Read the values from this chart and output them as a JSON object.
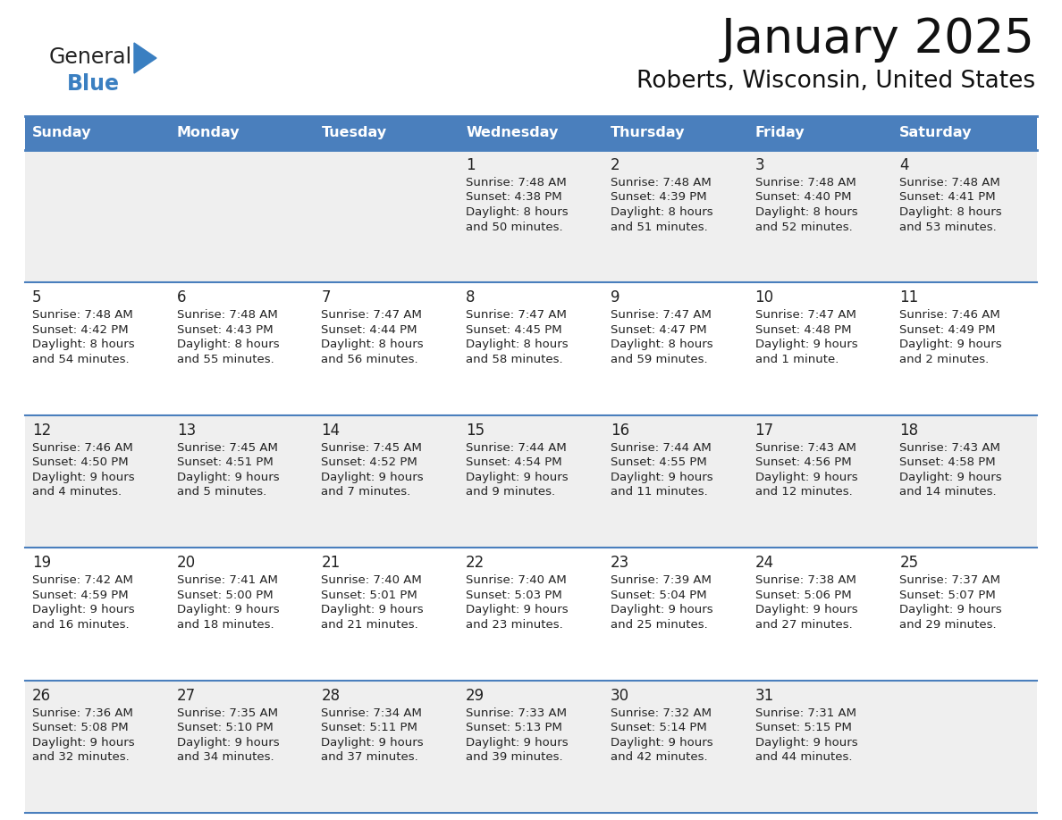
{
  "title": "January 2025",
  "subtitle": "Roberts, Wisconsin, United States",
  "header_bg": "#4a7fbd",
  "header_text_color": "#ffffff",
  "row_bg_odd": "#efefef",
  "row_bg_even": "#ffffff",
  "border_color": "#4a7fbd",
  "day_names": [
    "Sunday",
    "Monday",
    "Tuesday",
    "Wednesday",
    "Thursday",
    "Friday",
    "Saturday"
  ],
  "days": [
    {
      "day": 1,
      "col": 3,
      "row": 0,
      "sunrise": "7:48 AM",
      "sunset": "4:38 PM",
      "daylight": "8 hours and 50 minutes"
    },
    {
      "day": 2,
      "col": 4,
      "row": 0,
      "sunrise": "7:48 AM",
      "sunset": "4:39 PM",
      "daylight": "8 hours and 51 minutes"
    },
    {
      "day": 3,
      "col": 5,
      "row": 0,
      "sunrise": "7:48 AM",
      "sunset": "4:40 PM",
      "daylight": "8 hours and 52 minutes"
    },
    {
      "day": 4,
      "col": 6,
      "row": 0,
      "sunrise": "7:48 AM",
      "sunset": "4:41 PM",
      "daylight": "8 hours and 53 minutes"
    },
    {
      "day": 5,
      "col": 0,
      "row": 1,
      "sunrise": "7:48 AM",
      "sunset": "4:42 PM",
      "daylight": "8 hours and 54 minutes"
    },
    {
      "day": 6,
      "col": 1,
      "row": 1,
      "sunrise": "7:48 AM",
      "sunset": "4:43 PM",
      "daylight": "8 hours and 55 minutes"
    },
    {
      "day": 7,
      "col": 2,
      "row": 1,
      "sunrise": "7:47 AM",
      "sunset": "4:44 PM",
      "daylight": "8 hours and 56 minutes"
    },
    {
      "day": 8,
      "col": 3,
      "row": 1,
      "sunrise": "7:47 AM",
      "sunset": "4:45 PM",
      "daylight": "8 hours and 58 minutes"
    },
    {
      "day": 9,
      "col": 4,
      "row": 1,
      "sunrise": "7:47 AM",
      "sunset": "4:47 PM",
      "daylight": "8 hours and 59 minutes"
    },
    {
      "day": 10,
      "col": 5,
      "row": 1,
      "sunrise": "7:47 AM",
      "sunset": "4:48 PM",
      "daylight": "9 hours and 1 minute"
    },
    {
      "day": 11,
      "col": 6,
      "row": 1,
      "sunrise": "7:46 AM",
      "sunset": "4:49 PM",
      "daylight": "9 hours and 2 minutes"
    },
    {
      "day": 12,
      "col": 0,
      "row": 2,
      "sunrise": "7:46 AM",
      "sunset": "4:50 PM",
      "daylight": "9 hours and 4 minutes"
    },
    {
      "day": 13,
      "col": 1,
      "row": 2,
      "sunrise": "7:45 AM",
      "sunset": "4:51 PM",
      "daylight": "9 hours and 5 minutes"
    },
    {
      "day": 14,
      "col": 2,
      "row": 2,
      "sunrise": "7:45 AM",
      "sunset": "4:52 PM",
      "daylight": "9 hours and 7 minutes"
    },
    {
      "day": 15,
      "col": 3,
      "row": 2,
      "sunrise": "7:44 AM",
      "sunset": "4:54 PM",
      "daylight": "9 hours and 9 minutes"
    },
    {
      "day": 16,
      "col": 4,
      "row": 2,
      "sunrise": "7:44 AM",
      "sunset": "4:55 PM",
      "daylight": "9 hours and 11 minutes"
    },
    {
      "day": 17,
      "col": 5,
      "row": 2,
      "sunrise": "7:43 AM",
      "sunset": "4:56 PM",
      "daylight": "9 hours and 12 minutes"
    },
    {
      "day": 18,
      "col": 6,
      "row": 2,
      "sunrise": "7:43 AM",
      "sunset": "4:58 PM",
      "daylight": "9 hours and 14 minutes"
    },
    {
      "day": 19,
      "col": 0,
      "row": 3,
      "sunrise": "7:42 AM",
      "sunset": "4:59 PM",
      "daylight": "9 hours and 16 minutes"
    },
    {
      "day": 20,
      "col": 1,
      "row": 3,
      "sunrise": "7:41 AM",
      "sunset": "5:00 PM",
      "daylight": "9 hours and 18 minutes"
    },
    {
      "day": 21,
      "col": 2,
      "row": 3,
      "sunrise": "7:40 AM",
      "sunset": "5:01 PM",
      "daylight": "9 hours and 21 minutes"
    },
    {
      "day": 22,
      "col": 3,
      "row": 3,
      "sunrise": "7:40 AM",
      "sunset": "5:03 PM",
      "daylight": "9 hours and 23 minutes"
    },
    {
      "day": 23,
      "col": 4,
      "row": 3,
      "sunrise": "7:39 AM",
      "sunset": "5:04 PM",
      "daylight": "9 hours and 25 minutes"
    },
    {
      "day": 24,
      "col": 5,
      "row": 3,
      "sunrise": "7:38 AM",
      "sunset": "5:06 PM",
      "daylight": "9 hours and 27 minutes"
    },
    {
      "day": 25,
      "col": 6,
      "row": 3,
      "sunrise": "7:37 AM",
      "sunset": "5:07 PM",
      "daylight": "9 hours and 29 minutes"
    },
    {
      "day": 26,
      "col": 0,
      "row": 4,
      "sunrise": "7:36 AM",
      "sunset": "5:08 PM",
      "daylight": "9 hours and 32 minutes"
    },
    {
      "day": 27,
      "col": 1,
      "row": 4,
      "sunrise": "7:35 AM",
      "sunset": "5:10 PM",
      "daylight": "9 hours and 34 minutes"
    },
    {
      "day": 28,
      "col": 2,
      "row": 4,
      "sunrise": "7:34 AM",
      "sunset": "5:11 PM",
      "daylight": "9 hours and 37 minutes"
    },
    {
      "day": 29,
      "col": 3,
      "row": 4,
      "sunrise": "7:33 AM",
      "sunset": "5:13 PM",
      "daylight": "9 hours and 39 minutes"
    },
    {
      "day": 30,
      "col": 4,
      "row": 4,
      "sunrise": "7:32 AM",
      "sunset": "5:14 PM",
      "daylight": "9 hours and 42 minutes"
    },
    {
      "day": 31,
      "col": 5,
      "row": 4,
      "sunrise": "7:31 AM",
      "sunset": "5:15 PM",
      "daylight": "9 hours and 44 minutes"
    }
  ],
  "logo_general_color": "#222222",
  "logo_blue_color": "#3a7fc1",
  "logo_triangle_color": "#3a7fc1",
  "fig_width": 11.88,
  "fig_height": 9.18,
  "dpi": 100
}
